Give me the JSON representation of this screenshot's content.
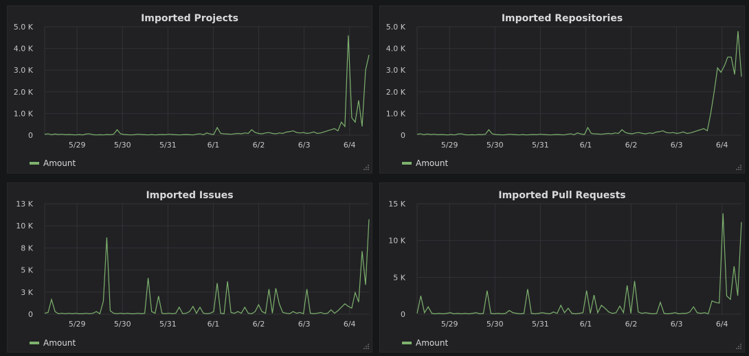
{
  "colors": {
    "series": "#7eb26d",
    "grid": "#333336",
    "text": "#d8d9da",
    "panel": "#212124"
  },
  "chart_data": [
    {
      "type": "line",
      "title": "Imported Projects",
      "x_labels": [
        "5/29",
        "5/30",
        "5/31",
        "6/1",
        "6/2",
        "6/3",
        "6/4"
      ],
      "y_ticks": [
        "0",
        "1.0 K",
        "2.0 K",
        "3.0 K",
        "4.0 K",
        "5.0 K"
      ],
      "ylim": [
        0,
        5000
      ],
      "grid": true,
      "legend": "bottom-left",
      "series": [
        {
          "name": "Amount",
          "values": [
            40,
            60,
            20,
            50,
            30,
            40,
            20,
            30,
            20,
            10,
            30,
            10,
            50,
            60,
            20,
            10,
            20,
            10,
            30,
            20,
            40,
            250,
            60,
            30,
            20,
            10,
            20,
            40,
            30,
            20,
            10,
            30,
            10,
            20,
            30,
            20,
            40,
            30,
            20,
            10,
            20,
            30,
            20,
            10,
            40,
            60,
            20,
            100,
            50,
            30,
            350,
            80,
            60,
            50,
            40,
            60,
            80,
            60,
            100,
            80,
            250,
            120,
            80,
            60,
            100,
            120,
            80,
            60,
            100,
            80,
            140,
            160,
            200,
            120,
            100,
            120,
            80,
            100,
            150,
            80,
            100,
            150,
            200,
            250,
            300,
            200,
            600,
            400,
            4600,
            800,
            600,
            1600,
            400,
            3000,
            3700
          ]
        }
      ]
    },
    {
      "type": "line",
      "title": "Imported Repositories",
      "x_labels": [
        "5/29",
        "5/30",
        "5/31",
        "6/1",
        "6/2",
        "6/3",
        "6/4"
      ],
      "y_ticks": [
        "0",
        "1.0 K",
        "2.0 K",
        "3.0 K",
        "4.0 K",
        "5.0 K"
      ],
      "ylim": [
        0,
        5000
      ],
      "grid": true,
      "legend": "bottom-left",
      "series": [
        {
          "name": "Amount",
          "values": [
            40,
            60,
            20,
            50,
            30,
            40,
            20,
            30,
            20,
            10,
            30,
            10,
            50,
            60,
            20,
            10,
            20,
            10,
            30,
            20,
            40,
            250,
            60,
            30,
            20,
            10,
            20,
            40,
            30,
            20,
            10,
            30,
            10,
            20,
            30,
            20,
            40,
            30,
            20,
            10,
            20,
            30,
            20,
            10,
            40,
            60,
            20,
            100,
            50,
            30,
            350,
            80,
            60,
            50,
            40,
            60,
            80,
            60,
            100,
            80,
            250,
            120,
            80,
            60,
            100,
            120,
            80,
            60,
            100,
            80,
            140,
            160,
            200,
            120,
            100,
            120,
            80,
            100,
            150,
            80,
            100,
            150,
            200,
            250,
            300,
            200,
            1000,
            2000,
            3100,
            2900,
            3200,
            3600,
            3600,
            2800,
            4800,
            2700
          ]
        }
      ]
    },
    {
      "type": "line",
      "title": "Imported Issues",
      "x_labels": [
        "5/29",
        "5/30",
        "5/31",
        "6/1",
        "6/2",
        "6/3",
        "6/4"
      ],
      "y_ticks": [
        "0",
        "3 K",
        "5 K",
        "8 K",
        "10 K",
        "13 K"
      ],
      "ylim": [
        0,
        12800
      ],
      "grid": true,
      "legend": "bottom-left",
      "series": [
        {
          "name": "Amount",
          "values": [
            100,
            200,
            1700,
            300,
            50,
            100,
            50,
            100,
            50,
            100,
            50,
            50,
            100,
            50,
            100,
            300,
            50,
            1500,
            8900,
            400,
            100,
            50,
            100,
            50,
            100,
            50,
            50,
            100,
            50,
            100,
            4200,
            300,
            100,
            2100,
            100,
            50,
            100,
            50,
            100,
            800,
            50,
            100,
            300,
            900,
            100,
            800,
            100,
            50,
            100,
            300,
            3600,
            100,
            50,
            3800,
            200,
            100,
            300,
            100,
            800,
            100,
            50,
            300,
            1100,
            300,
            100,
            2900,
            100,
            3000,
            1200,
            200,
            100,
            50,
            300,
            100,
            200,
            50,
            2900,
            100,
            50,
            100,
            200,
            50,
            100,
            500,
            100,
            400,
            800,
            1200,
            900,
            700,
            2500,
            1400,
            7300,
            3400,
            11000
          ]
        }
      ]
    },
    {
      "type": "line",
      "title": "Imported Pull Requests",
      "x_labels": [
        "5/29",
        "5/30",
        "5/31",
        "6/1",
        "6/2",
        "6/3",
        "6/4"
      ],
      "y_ticks": [
        "0",
        "5 K",
        "10 K",
        "15 K"
      ],
      "ylim": [
        0,
        15000
      ],
      "grid": true,
      "legend": "bottom-left",
      "series": [
        {
          "name": "Amount",
          "values": [
            100,
            2500,
            200,
            1000,
            100,
            50,
            100,
            50,
            100,
            200,
            50,
            100,
            50,
            100,
            50,
            100,
            200,
            50,
            100,
            3200,
            100,
            50,
            100,
            50,
            100,
            500,
            200,
            100,
            50,
            100,
            3400,
            100,
            50,
            100,
            200,
            100,
            50,
            300,
            100,
            1200,
            200,
            800,
            100,
            50,
            100,
            200,
            3200,
            100,
            2600,
            200,
            1200,
            800,
            300,
            100,
            200,
            1100,
            200,
            3900,
            100,
            4500,
            300,
            100,
            200,
            100,
            50,
            100,
            1600,
            100,
            50,
            100,
            200,
            50,
            100,
            100,
            300,
            1000,
            200,
            100,
            200,
            50,
            1800,
            1600,
            1500,
            13700,
            2500,
            2000,
            6500,
            2500,
            12500
          ]
        }
      ]
    }
  ]
}
